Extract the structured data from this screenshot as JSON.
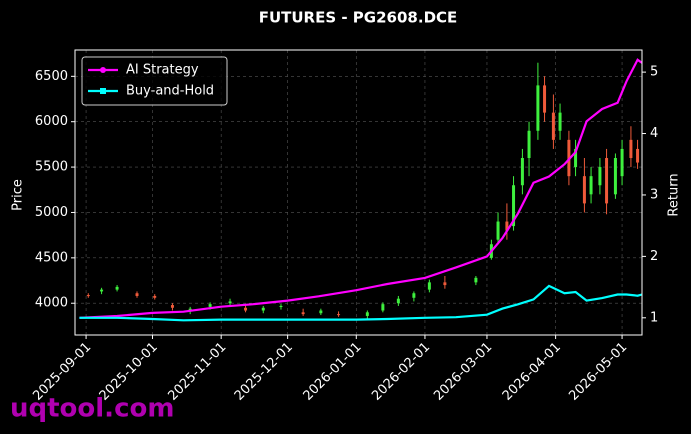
{
  "chart_data": {
    "type": "candlestick",
    "title": "FUTURES - PG2608.DCE",
    "ylabel": "Price",
    "y2label": "Return",
    "watermark": "uqtool.com",
    "xlim": [
      "2025-08-27",
      "2026-05-10"
    ],
    "xticks": [
      "2025-09-01",
      "2025-10-01",
      "2025-11-01",
      "2025-12-01",
      "2026-01-01",
      "2026-02-01",
      "2026-03-01",
      "2026-04-01",
      "2026-05-01"
    ],
    "ylim": [
      3650,
      6790
    ],
    "yticks": [
      4000,
      4500,
      5000,
      5500,
      6000,
      6500
    ],
    "y2lim": [
      0.72,
      5.36
    ],
    "y2ticks": [
      1,
      2,
      3,
      4,
      5
    ],
    "grid": true,
    "legend": "upper left",
    "candles": {
      "up_color": "#3ef03e",
      "down_color": "#ef5a3a",
      "dates": [
        "2025-09-02",
        "2025-09-08",
        "2025-09-15",
        "2025-09-24",
        "2025-10-02",
        "2025-10-10",
        "2025-10-18",
        "2025-10-27",
        "2025-11-05",
        "2025-11-12",
        "2025-11-20",
        "2025-11-28",
        "2025-12-08",
        "2025-12-16",
        "2025-12-24",
        "2026-01-06",
        "2026-01-13",
        "2026-01-20",
        "2026-01-27",
        "2026-02-03",
        "2026-02-10",
        "2026-02-24",
        "2026-03-03",
        "2026-03-06",
        "2026-03-10",
        "2026-03-13",
        "2026-03-17",
        "2026-03-20",
        "2026-03-24",
        "2026-03-27",
        "2026-03-31",
        "2026-04-03",
        "2026-04-07",
        "2026-04-10",
        "2026-04-14",
        "2026-04-17",
        "2026-04-21",
        "2026-04-24",
        "2026-04-28",
        "2026-05-01",
        "2026-05-05",
        "2026-05-08"
      ],
      "open": [
        4090,
        4130,
        4150,
        4110,
        4080,
        3980,
        3920,
        3960,
        4000,
        3950,
        3920,
        3960,
        3900,
        3890,
        3880,
        3860,
        3920,
        4000,
        4060,
        4150,
        4230,
        4230,
        4500,
        4700,
        4900,
        4850,
        5300,
        5600,
        5900,
        6400,
        6100,
        5900,
        5800,
        5500,
        5400,
        5200,
        5300,
        5600,
        5200,
        5400,
        5800,
        5700
      ],
      "high": [
        4110,
        4170,
        4200,
        4130,
        4100,
        4000,
        3960,
        4010,
        4050,
        3980,
        3970,
        3990,
        3940,
        3940,
        3910,
        3920,
        4010,
        4080,
        4130,
        4260,
        4300,
        4300,
        4700,
        5000,
        5100,
        5400,
        5700,
        6000,
        6650,
        6500,
        6300,
        6200,
        5900,
        5800,
        5600,
        5500,
        5600,
        5700,
        5650,
        5800,
        5950,
        5800
      ],
      "low": [
        4060,
        4100,
        4130,
        4060,
        4040,
        3920,
        3880,
        3930,
        3970,
        3900,
        3890,
        3930,
        3860,
        3870,
        3850,
        3830,
        3900,
        3970,
        4020,
        4120,
        4160,
        4200,
        4480,
        4650,
        4700,
        4800,
        5200,
        5400,
        5800,
        6000,
        5700,
        5800,
        5300,
        5400,
        5000,
        5100,
        5200,
        4980,
        5150,
        5300,
        5500,
        5480
      ],
      "close": [
        4080,
        4150,
        4180,
        4080,
        4060,
        3950,
        3940,
        3990,
        4020,
        3920,
        3950,
        3970,
        3880,
        3920,
        3870,
        3900,
        3990,
        4050,
        4110,
        4230,
        4200,
        4280,
        4650,
        4900,
        4800,
        5300,
        5600,
        5900,
        6400,
        6100,
        5800,
        6100,
        5400,
        5700,
        5100,
        5400,
        5500,
        5100,
        5600,
        5700,
        5600,
        5550
      ]
    },
    "x": [
      "2025-08-29",
      "2025-09-15",
      "2025-10-01",
      "2025-10-15",
      "2025-11-01",
      "2025-11-15",
      "2025-12-01",
      "2025-12-15",
      "2026-01-01",
      "2026-01-15",
      "2026-02-01",
      "2026-02-15",
      "2026-03-01",
      "2026-03-08",
      "2026-03-15",
      "2026-03-22",
      "2026-03-29",
      "2026-04-05",
      "2026-04-10",
      "2026-04-15",
      "2026-04-22",
      "2026-04-29",
      "2026-05-03",
      "2026-05-08",
      "2026-05-10"
    ],
    "series": [
      {
        "name": "AI Strategy",
        "color": "#ff00ff",
        "axis": "y2",
        "marker": "circle",
        "values": [
          1.0,
          1.03,
          1.08,
          1.1,
          1.18,
          1.22,
          1.28,
          1.35,
          1.45,
          1.55,
          1.65,
          1.82,
          2.0,
          2.3,
          2.7,
          3.2,
          3.3,
          3.5,
          3.7,
          4.2,
          4.4,
          4.5,
          4.85,
          5.2,
          5.15
        ]
      },
      {
        "name": "Buy-and-Hold",
        "color": "#00ffff",
        "axis": "y2",
        "marker": "square",
        "values": [
          1.0,
          1.0,
          0.98,
          0.96,
          0.97,
          0.97,
          0.97,
          0.97,
          0.97,
          0.98,
          1.0,
          1.01,
          1.05,
          1.15,
          1.22,
          1.3,
          1.52,
          1.4,
          1.42,
          1.28,
          1.32,
          1.38,
          1.38,
          1.36,
          1.38
        ]
      }
    ]
  }
}
